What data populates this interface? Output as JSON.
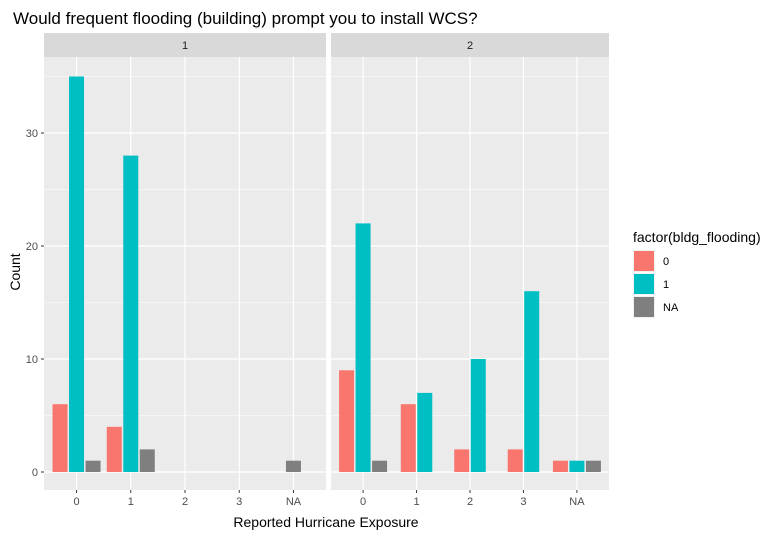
{
  "chart_data": {
    "type": "bar",
    "title": "Would frequent flooding (building) prompt you to install WCS?",
    "xlabel": "Reported Hurricane Exposure",
    "ylabel": "Count",
    "ylim": [
      0,
      38
    ],
    "yticks": [
      0,
      10,
      20,
      30
    ],
    "categories": [
      "0",
      "1",
      "2",
      "3",
      "NA"
    ],
    "grid": true,
    "legend": {
      "title": "factor(bldg_flooding)",
      "position": "right",
      "entries": [
        {
          "label": "0",
          "color": "#F8766D"
        },
        {
          "label": "1",
          "color": "#00BFC4"
        },
        {
          "label": "NA",
          "color": "#7F7F7F"
        }
      ]
    },
    "facets": [
      {
        "label": "1",
        "bars": [
          {
            "x": "0",
            "group": "0",
            "value": 6
          },
          {
            "x": "0",
            "group": "1",
            "value": 35
          },
          {
            "x": "0",
            "group": "NA",
            "value": 1
          },
          {
            "x": "1",
            "group": "0",
            "value": 4
          },
          {
            "x": "1",
            "group": "1",
            "value": 28
          },
          {
            "x": "1",
            "group": "NA",
            "value": 2
          },
          {
            "x": "NA",
            "group": "NA",
            "value": 1
          }
        ]
      },
      {
        "label": "2",
        "bars": [
          {
            "x": "0",
            "group": "0",
            "value": 9
          },
          {
            "x": "0",
            "group": "1",
            "value": 22
          },
          {
            "x": "0",
            "group": "NA",
            "value": 1
          },
          {
            "x": "1",
            "group": "0",
            "value": 6
          },
          {
            "x": "1",
            "group": "1",
            "value": 7
          },
          {
            "x": "2",
            "group": "0",
            "value": 2
          },
          {
            "x": "2",
            "group": "1",
            "value": 10
          },
          {
            "x": "3",
            "group": "0",
            "value": 2
          },
          {
            "x": "3",
            "group": "1",
            "value": 16
          },
          {
            "x": "NA",
            "group": "0",
            "value": 1
          },
          {
            "x": "NA",
            "group": "1",
            "value": 1
          },
          {
            "x": "NA",
            "group": "NA",
            "value": 1
          }
        ]
      }
    ]
  }
}
